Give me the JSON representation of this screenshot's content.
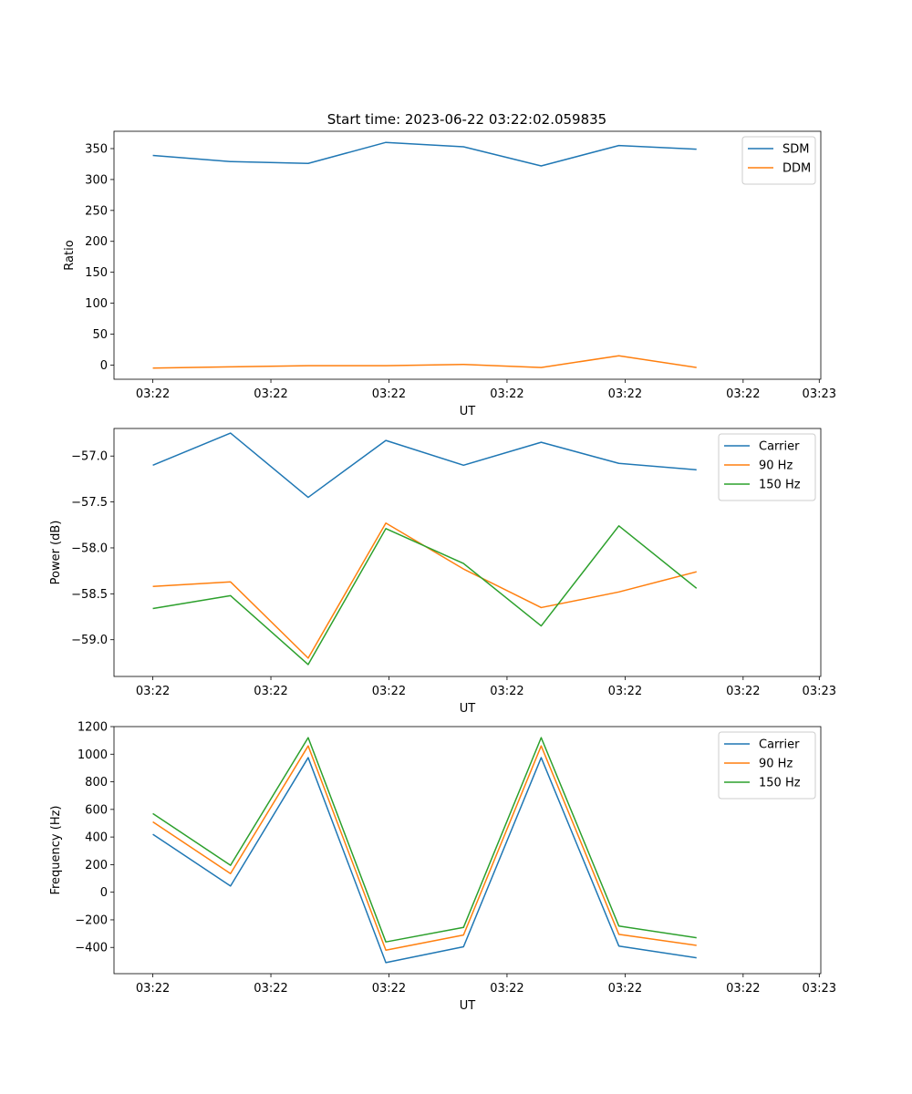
{
  "title": "Start time: 2023-06-22 03:22:02.059835",
  "chart_data": [
    {
      "type": "line",
      "xlabel": "UT",
      "ylabel": "Ratio",
      "xticks": [
        "03:22",
        "03:22",
        "03:22",
        "03:22",
        "03:22",
        "03:22",
        "03:23"
      ],
      "x": [
        1,
        2,
        3,
        4,
        5,
        6,
        7,
        8
      ],
      "xlim": [
        0.5,
        9.6
      ],
      "yticks": [
        "0",
        "50",
        "100",
        "150",
        "200",
        "250",
        "300",
        "350"
      ],
      "ylim": [
        -23,
        378
      ],
      "legend": "top-right",
      "grid": false,
      "series": [
        {
          "name": "SDM",
          "color": "#1f77b4",
          "values": [
            339,
            329,
            326,
            360,
            353,
            322,
            355,
            349
          ]
        },
        {
          "name": "DDM",
          "color": "#ff7f0e",
          "values": [
            -5,
            -3,
            -1,
            -1,
            1,
            -4,
            15,
            -4
          ]
        }
      ]
    },
    {
      "type": "line",
      "xlabel": "UT",
      "ylabel": "Power (dB)",
      "xticks": [
        "03:22",
        "03:22",
        "03:22",
        "03:22",
        "03:22",
        "03:22",
        "03:23"
      ],
      "x": [
        1,
        2,
        3,
        4,
        5,
        6,
        7,
        8
      ],
      "xlim": [
        0.5,
        9.6
      ],
      "yticks": [
        "−59.0",
        "−58.5",
        "−58.0",
        "−57.5",
        "−57.0"
      ],
      "ylim": [
        -59.4,
        -56.7
      ],
      "legend": "top-right",
      "grid": false,
      "series": [
        {
          "name": "Carrier",
          "color": "#1f77b4",
          "values": [
            -57.1,
            -56.75,
            -57.45,
            -56.83,
            -57.1,
            -56.85,
            -57.08,
            -57.15
          ]
        },
        {
          "name": "90 Hz",
          "color": "#ff7f0e",
          "values": [
            -58.42,
            -58.37,
            -59.2,
            -57.73,
            -58.23,
            -58.65,
            -58.48,
            -58.26
          ]
        },
        {
          "name": "150 Hz",
          "color": "#2ca02c",
          "values": [
            -58.66,
            -58.52,
            -59.27,
            -57.79,
            -58.17,
            -58.85,
            -57.76,
            -58.44
          ]
        }
      ]
    },
    {
      "type": "line",
      "xlabel": "UT",
      "ylabel": "Frequency (Hz)",
      "xticks": [
        "03:22",
        "03:22",
        "03:22",
        "03:22",
        "03:22",
        "03:22",
        "03:23"
      ],
      "x": [
        1,
        2,
        3,
        4,
        5,
        6,
        7,
        8
      ],
      "xlim": [
        0.5,
        9.6
      ],
      "yticks": [
        "−400",
        "−200",
        "0",
        "200",
        "400",
        "600",
        "800",
        "1000",
        "1200"
      ],
      "ylim": [
        -590,
        1200
      ],
      "legend": "top-right",
      "grid": false,
      "series": [
        {
          "name": "Carrier",
          "color": "#1f77b4",
          "values": [
            420,
            45,
            975,
            -510,
            -395,
            975,
            -390,
            -475
          ]
        },
        {
          "name": "90 Hz",
          "color": "#ff7f0e",
          "values": [
            510,
            135,
            1060,
            -420,
            -310,
            1060,
            -305,
            -385
          ]
        },
        {
          "name": "150 Hz",
          "color": "#2ca02c",
          "values": [
            570,
            195,
            1120,
            -360,
            -255,
            1120,
            -245,
            -330
          ]
        }
      ]
    }
  ]
}
